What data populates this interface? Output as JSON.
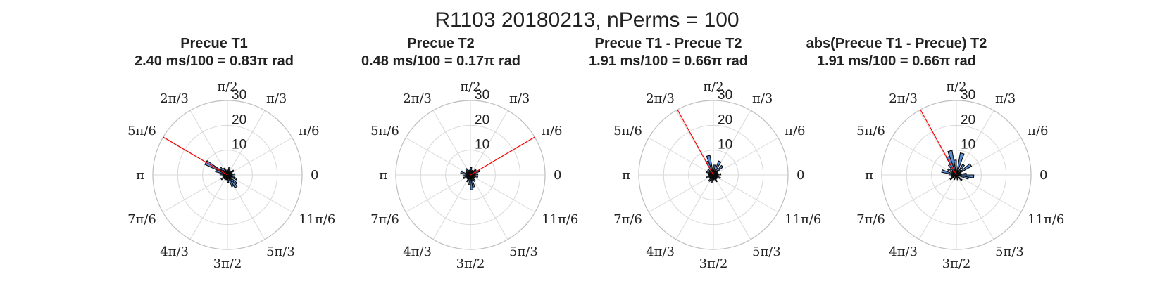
{
  "figure": {
    "title": "R1103 20180213, nPerms = 100"
  },
  "polar": {
    "r_ticks": [
      10,
      20,
      30
    ],
    "r_max": 30,
    "theta_labels": [
      "0",
      "π/6",
      "π/3",
      "π/2",
      "2π/3",
      "5π/6",
      "π",
      "7π/6",
      "4π/3",
      "3π/2",
      "5π/3",
      "11π/6"
    ],
    "grid": true
  },
  "colors": {
    "bar_fill": "#5b8fd6",
    "bar_edge": "#0a0a0a",
    "mean_line": "#ff0000",
    "grid": "#d9d9d9",
    "axis": "#bfbfbf"
  },
  "chart_data": [
    {
      "type": "polar-histogram",
      "title": "Precue T1",
      "subtitle": "2.40 ms/100 = 0.83π rad",
      "mean_angle_pi": 0.83,
      "bin_width_deg": 10,
      "bins": [
        {
          "deg": 5,
          "r": 3
        },
        {
          "deg": 15,
          "r": 2
        },
        {
          "deg": 35,
          "r": 3
        },
        {
          "deg": 55,
          "r": 2
        },
        {
          "deg": 75,
          "r": 3
        },
        {
          "deg": 95,
          "r": 2
        },
        {
          "deg": 115,
          "r": 3
        },
        {
          "deg": 135,
          "r": 4
        },
        {
          "deg": 150,
          "r": 10
        },
        {
          "deg": 160,
          "r": 5
        },
        {
          "deg": 175,
          "r": 3
        },
        {
          "deg": 195,
          "r": 2
        },
        {
          "deg": 215,
          "r": 3
        },
        {
          "deg": 235,
          "r": 2
        },
        {
          "deg": 255,
          "r": 2
        },
        {
          "deg": 275,
          "r": 3
        },
        {
          "deg": 295,
          "r": 5
        },
        {
          "deg": 305,
          "r": 6
        },
        {
          "deg": 315,
          "r": 5
        },
        {
          "deg": 335,
          "r": 4
        },
        {
          "deg": 345,
          "r": 3
        }
      ]
    },
    {
      "type": "polar-histogram",
      "title": "Precue T2",
      "subtitle": "0.48 ms/100 = 0.17π rad",
      "mean_angle_pi": 0.17,
      "bin_width_deg": 10,
      "bins": [
        {
          "deg": 5,
          "r": 3
        },
        {
          "deg": 25,
          "r": 4
        },
        {
          "deg": 45,
          "r": 3
        },
        {
          "deg": 65,
          "r": 2
        },
        {
          "deg": 85,
          "r": 3
        },
        {
          "deg": 105,
          "r": 2
        },
        {
          "deg": 125,
          "r": 3
        },
        {
          "deg": 145,
          "r": 2
        },
        {
          "deg": 165,
          "r": 4
        },
        {
          "deg": 185,
          "r": 3
        },
        {
          "deg": 205,
          "r": 3
        },
        {
          "deg": 225,
          "r": 2
        },
        {
          "deg": 245,
          "r": 3
        },
        {
          "deg": 265,
          "r": 4
        },
        {
          "deg": 275,
          "r": 6
        },
        {
          "deg": 285,
          "r": 5
        },
        {
          "deg": 305,
          "r": 3
        },
        {
          "deg": 325,
          "r": 2
        },
        {
          "deg": 345,
          "r": 3
        }
      ]
    },
    {
      "type": "polar-histogram",
      "title": "Precue T1 - Precue T2",
      "subtitle": "1.91 ms/100 = 0.66π rad",
      "mean_angle_pi": 0.66,
      "bin_width_deg": 10,
      "bins": [
        {
          "deg": 5,
          "r": 3
        },
        {
          "deg": 25,
          "r": 2
        },
        {
          "deg": 45,
          "r": 5
        },
        {
          "deg": 65,
          "r": 6
        },
        {
          "deg": 85,
          "r": 4
        },
        {
          "deg": 105,
          "r": 8
        },
        {
          "deg": 115,
          "r": 6
        },
        {
          "deg": 135,
          "r": 3
        },
        {
          "deg": 155,
          "r": 3
        },
        {
          "deg": 175,
          "r": 2
        },
        {
          "deg": 195,
          "r": 3
        },
        {
          "deg": 215,
          "r": 2
        },
        {
          "deg": 235,
          "r": 3
        },
        {
          "deg": 255,
          "r": 3
        },
        {
          "deg": 275,
          "r": 2
        },
        {
          "deg": 295,
          "r": 3
        },
        {
          "deg": 315,
          "r": 2
        },
        {
          "deg": 335,
          "r": 3
        },
        {
          "deg": 355,
          "r": 2
        }
      ]
    },
    {
      "type": "polar-histogram",
      "title": "abs(Precue T1 - Precue) T2",
      "subtitle": "1.91 ms/100 = 0.66π rad",
      "mean_angle_pi": 0.66,
      "bin_width_deg": 10,
      "bins": [
        {
          "deg": 5,
          "r": 4
        },
        {
          "deg": 15,
          "r": 2
        },
        {
          "deg": 35,
          "r": 7
        },
        {
          "deg": 55,
          "r": 5
        },
        {
          "deg": 75,
          "r": 9
        },
        {
          "deg": 95,
          "r": 6
        },
        {
          "deg": 105,
          "r": 10
        },
        {
          "deg": 115,
          "r": 8
        },
        {
          "deg": 125,
          "r": 5
        },
        {
          "deg": 145,
          "r": 4
        },
        {
          "deg": 165,
          "r": 6
        },
        {
          "deg": 175,
          "r": 3
        },
        {
          "deg": 195,
          "r": 2
        },
        {
          "deg": 215,
          "r": 3
        },
        {
          "deg": 245,
          "r": 2
        },
        {
          "deg": 285,
          "r": 2
        },
        {
          "deg": 315,
          "r": 3
        },
        {
          "deg": 345,
          "r": 5
        },
        {
          "deg": 355,
          "r": 7
        }
      ]
    }
  ]
}
